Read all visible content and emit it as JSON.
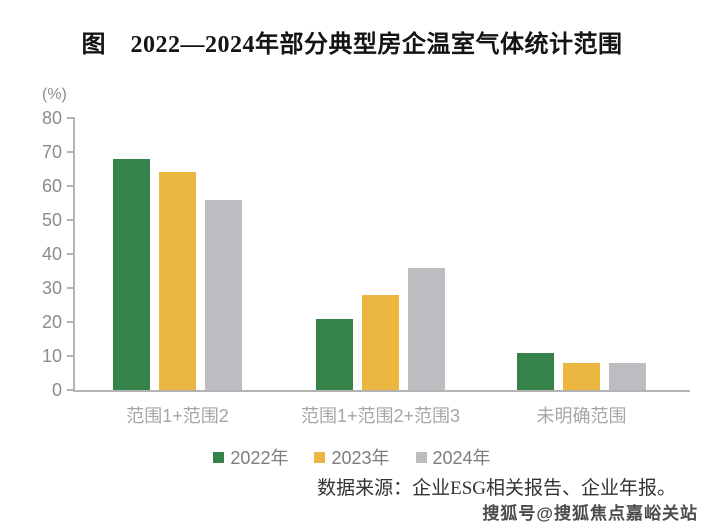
{
  "title": "图　2022—2024年部分典型房企温室气体统计范围",
  "source": "数据来源：企业ESG相关报告、企业年报。",
  "watermark": "搜狐号@搜狐焦点嘉峪关站",
  "chart_data": {
    "type": "bar",
    "title": "图　2022—2024年部分典型房企温室气体统计范围",
    "y_unit": "(%)",
    "xlabel": "",
    "ylabel": "(%)",
    "categories": [
      "范围1+范围2",
      "范围1+范围2+范围3",
      "未明确范围"
    ],
    "series": [
      {
        "name": "2022年",
        "color": "#35824b",
        "values": [
          68,
          21,
          11
        ]
      },
      {
        "name": "2023年",
        "color": "#ecb741",
        "values": [
          64,
          28,
          8
        ]
      },
      {
        "name": "2024年",
        "color": "#bdbdc1",
        "values": [
          56,
          36,
          8
        ]
      }
    ],
    "ylim": [
      0,
      80
    ],
    "ytick_step": 10,
    "grid": false,
    "legend_position": "bottom",
    "axis_color": "#b3b3b3",
    "tick_label_color": "#8c8c8c",
    "category_label_color": "#a6a6a6",
    "legend_label_color": "#7d7d7d"
  }
}
